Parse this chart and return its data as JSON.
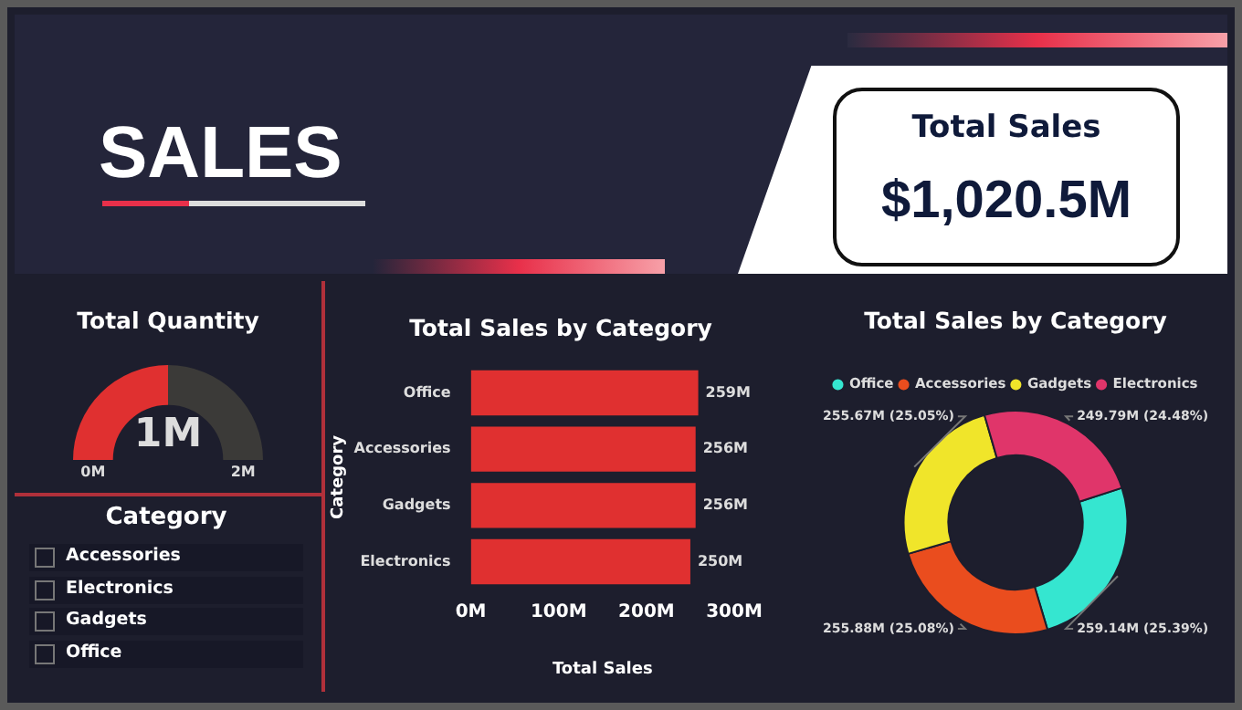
{
  "chart_data": [
    {
      "type": "other",
      "title": "SALES",
      "annotations": [
        "Total Sales",
        "$1,020.5M"
      ]
    },
    {
      "type": "donut",
      "title": "Total Quantity",
      "categories": [
        null,
        null
      ],
      "values": [
        50,
        50
      ],
      "colors": [
        "#e03030",
        "#3b3a38"
      ],
      "annotations": [
        "1M",
        "0M",
        "2M"
      ]
    },
    {
      "type": "other",
      "title": "Category",
      "annotations": [
        "Accessories",
        "Electronics",
        "Gadgets",
        "Office"
      ]
    },
    {
      "type": "bar",
      "orientation": "horizontal",
      "title": "Total Sales by Category",
      "xlabel": "Total Sales",
      "ylabel": "Category",
      "categories": [
        "Office",
        "Accessories",
        "Gadgets",
        "Electronics"
      ],
      "values": [
        259,
        256,
        256,
        250
      ],
      "color": "#e03030",
      "value_labels": [
        "259M",
        "256M",
        "256M",
        "250M"
      ],
      "xlim": [
        0,
        300
      ],
      "xticks": [
        {
          "value": 0,
          "label": "0M"
        },
        {
          "value": 100,
          "label": "100M"
        },
        {
          "value": 200,
          "label": "200M"
        },
        {
          "value": 300,
          "label": "300M"
        }
      ],
      "grid": false,
      "legend": false
    },
    {
      "type": "donut",
      "title": "Total Sales by Category",
      "categories": [
        "Office",
        "Accessories",
        "Gadgets",
        "Electronics"
      ],
      "values": [
        25.39,
        25.08,
        25.05,
        24.48
      ],
      "colors": [
        "#35e6d0",
        "#ea4d1e",
        "#f0e52a",
        "#e0356a"
      ],
      "value_labels": [
        "259.14M (25.39%)",
        "255.88M (25.08%)",
        "255.67M (25.05%)",
        "249.79M (24.48%)"
      ],
      "legend": "top"
    }
  ]
}
